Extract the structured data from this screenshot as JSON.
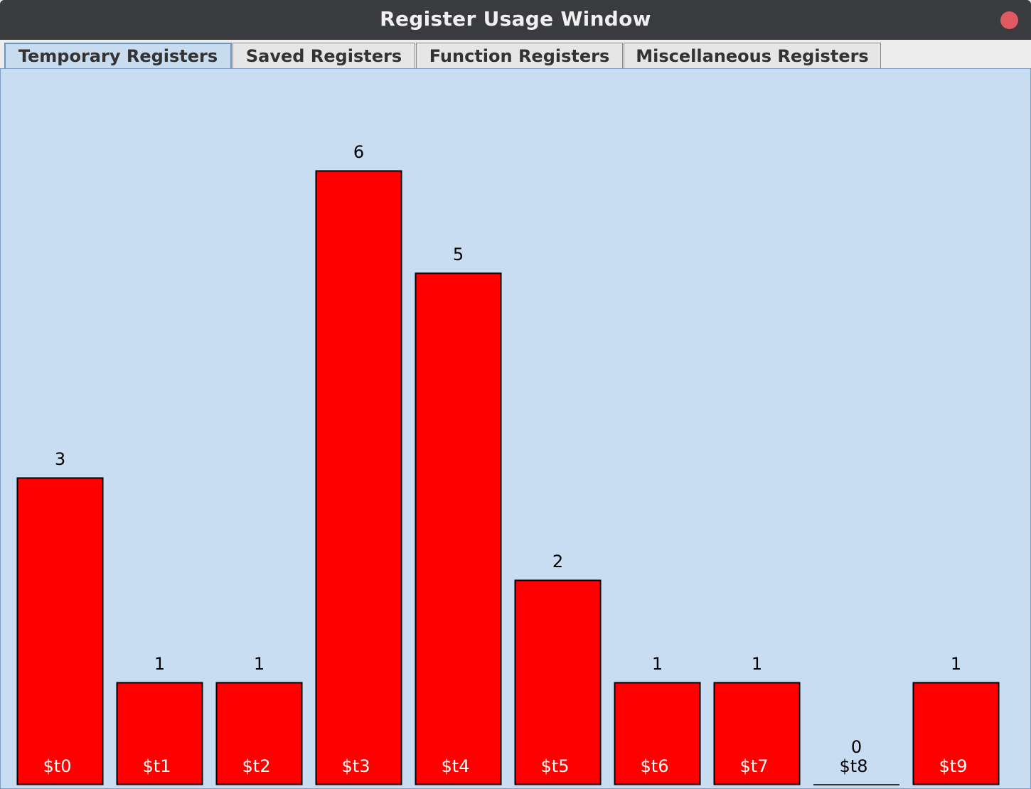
{
  "window": {
    "title": "Register Usage Window"
  },
  "tabs": [
    {
      "label": "Temporary Registers",
      "active": true
    },
    {
      "label": "Saved Registers",
      "active": false
    },
    {
      "label": "Function Registers",
      "active": false
    },
    {
      "label": "Miscellaneous Registers",
      "active": false
    }
  ],
  "colors": {
    "bar": "#ff0000",
    "bar_outline": "#000000",
    "panel_background": "#c8ddf1",
    "close_button": "#e05a62"
  },
  "chart_data": {
    "type": "bar",
    "categories": [
      "$t0",
      "$t1",
      "$t2",
      "$t3",
      "$t4",
      "$t5",
      "$t6",
      "$t7",
      "$t8",
      "$t9"
    ],
    "values": [
      3,
      1,
      1,
      6,
      5,
      2,
      1,
      1,
      0,
      1
    ],
    "ylim": [
      0,
      6.4
    ],
    "grid": false,
    "legend": "none"
  }
}
